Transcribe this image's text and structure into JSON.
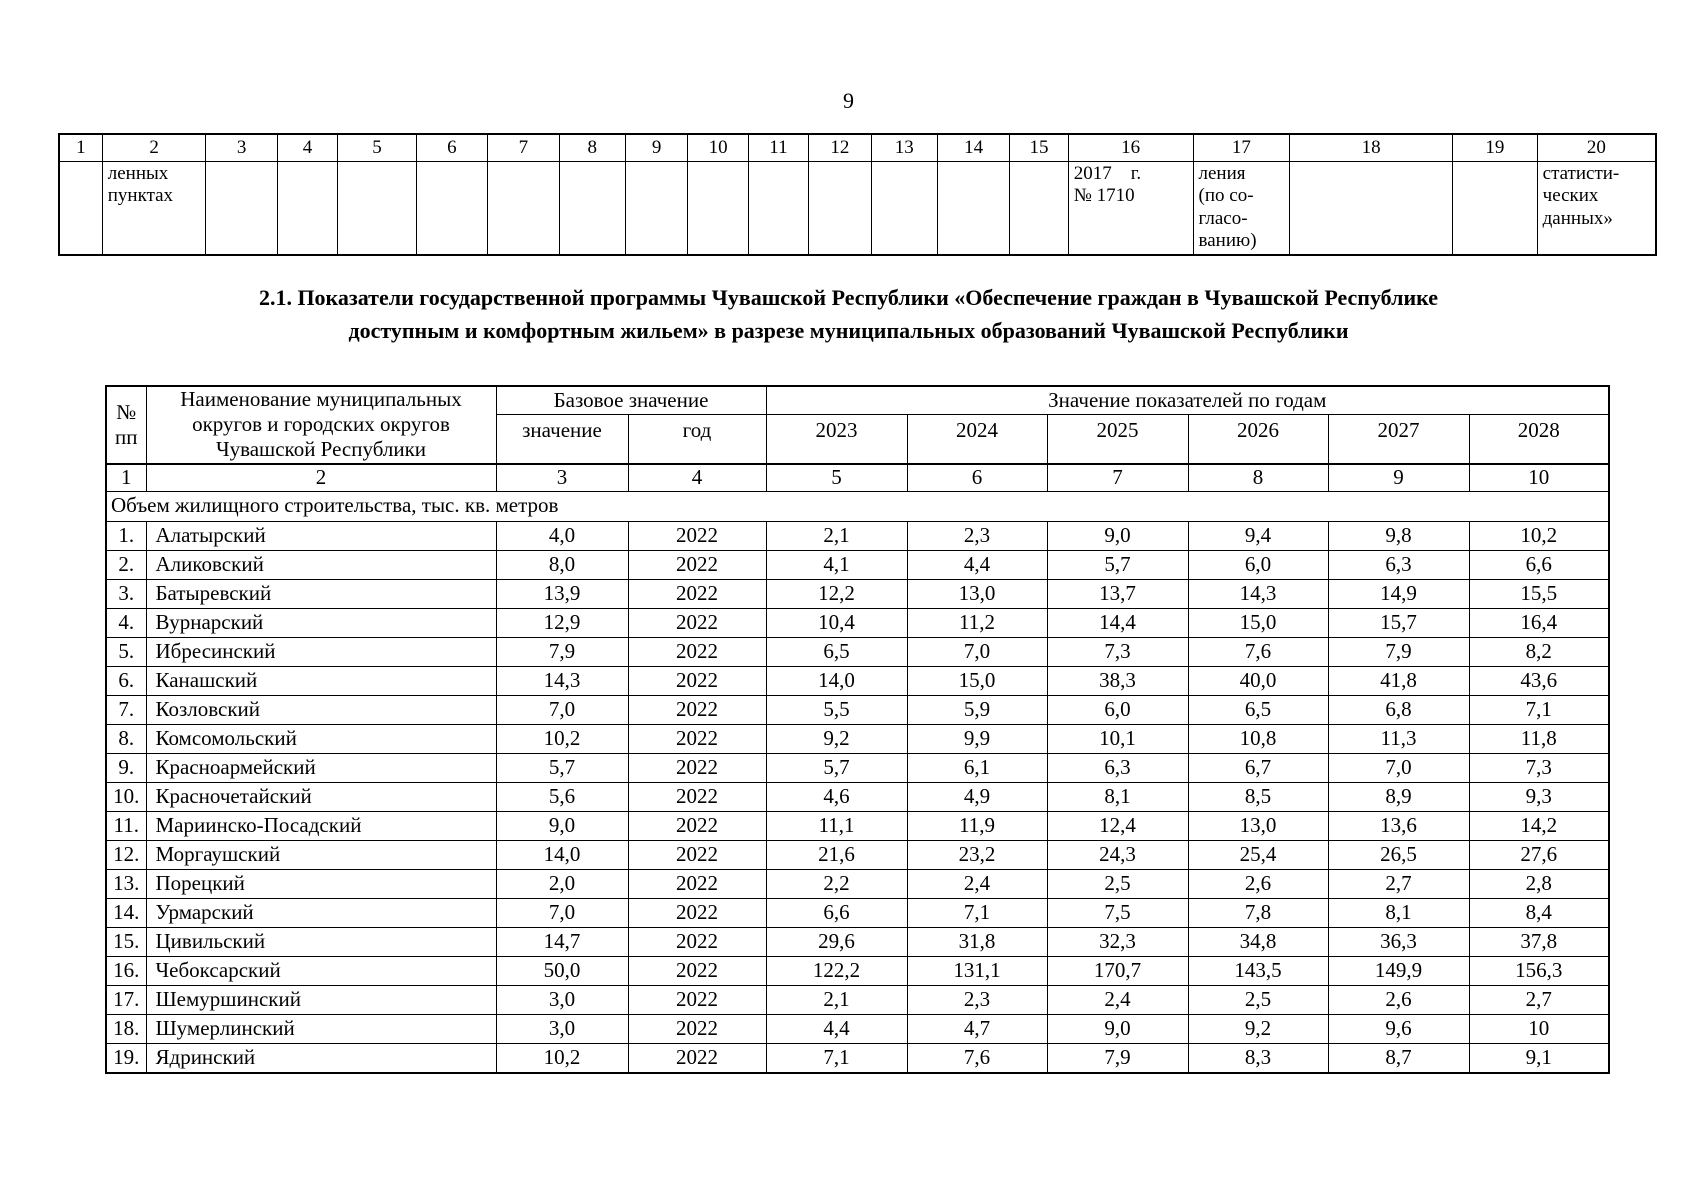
{
  "page": {
    "number": "9"
  },
  "continuation_table": {
    "column_numbers": [
      "1",
      "2",
      "3",
      "4",
      "5",
      "6",
      "7",
      "8",
      "9",
      "10",
      "11",
      "12",
      "13",
      "14",
      "15",
      "16",
      "17",
      "18",
      "19",
      "20"
    ],
    "body_cells": [
      "",
      "ленных\nпунктах",
      "",
      "",
      "",
      "",
      "",
      "",
      "",
      "",
      "",
      "",
      "",
      "",
      "",
      "2017    г.\n№ 1710",
      "ления\n(по со-\nгласо-\nванию)",
      "",
      "",
      "статисти-\nческих\nданных»"
    ]
  },
  "section_title": "2.1. Показатели государственной программы Чувашской Республики «Обеспечение граждан в Чувашской Республике\nдоступным и комфортным жильем» в разрезе муниципальных образований Чувашской Республики",
  "main_table": {
    "header": {
      "num": "№\nпп",
      "name": "Наименование муниципальных\nокругов и городских округов\nЧувашской Республики",
      "base_group": "Базовое значение",
      "base_value": "значение",
      "base_year": "год",
      "years_group": "Значение показателей по годам",
      "years": [
        "2023",
        "2024",
        "2025",
        "2026",
        "2027",
        "2028"
      ]
    },
    "column_numbers": [
      "1",
      "2",
      "3",
      "4",
      "5",
      "6",
      "7",
      "8",
      "9",
      "10"
    ],
    "section_row": "Объем жилищного строительства, тыс. кв. метров",
    "rows": [
      [
        "1.",
        "Алатырский",
        "4,0",
        "2022",
        "2,1",
        "2,3",
        "9,0",
        "9,4",
        "9,8",
        "10,2"
      ],
      [
        "2.",
        "Аликовский",
        "8,0",
        "2022",
        "4,1",
        "4,4",
        "5,7",
        "6,0",
        "6,3",
        "6,6"
      ],
      [
        "3.",
        "Батыревский",
        "13,9",
        "2022",
        "12,2",
        "13,0",
        "13,7",
        "14,3",
        "14,9",
        "15,5"
      ],
      [
        "4.",
        "Вурнарский",
        "12,9",
        "2022",
        "10,4",
        "11,2",
        "14,4",
        "15,0",
        "15,7",
        "16,4"
      ],
      [
        "5.",
        "Ибресинский",
        "7,9",
        "2022",
        "6,5",
        "7,0",
        "7,3",
        "7,6",
        "7,9",
        "8,2"
      ],
      [
        "6.",
        "Канашский",
        "14,3",
        "2022",
        "14,0",
        "15,0",
        "38,3",
        "40,0",
        "41,8",
        "43,6"
      ],
      [
        "7.",
        "Козловский",
        "7,0",
        "2022",
        "5,5",
        "5,9",
        "6,0",
        "6,5",
        "6,8",
        "7,1"
      ],
      [
        "8.",
        "Комсомольский",
        "10,2",
        "2022",
        "9,2",
        "9,9",
        "10,1",
        "10,8",
        "11,3",
        "11,8"
      ],
      [
        "9.",
        "Красноармейский",
        "5,7",
        "2022",
        "5,7",
        "6,1",
        "6,3",
        "6,7",
        "7,0",
        "7,3"
      ],
      [
        "10.",
        "Красночетайский",
        "5,6",
        "2022",
        "4,6",
        "4,9",
        "8,1",
        "8,5",
        "8,9",
        "9,3"
      ],
      [
        "11.",
        "Мариинско-Посадский",
        "9,0",
        "2022",
        "11,1",
        "11,9",
        "12,4",
        "13,0",
        "13,6",
        "14,2"
      ],
      [
        "12.",
        "Моргаушский",
        "14,0",
        "2022",
        "21,6",
        "23,2",
        "24,3",
        "25,4",
        "26,5",
        "27,6"
      ],
      [
        "13.",
        "Порецкий",
        "2,0",
        "2022",
        "2,2",
        "2,4",
        "2,5",
        "2,6",
        "2,7",
        "2,8"
      ],
      [
        "14.",
        "Урмарский",
        "7,0",
        "2022",
        "6,6",
        "7,1",
        "7,5",
        "7,8",
        "8,1",
        "8,4"
      ],
      [
        "15.",
        "Цивильский",
        "14,7",
        "2022",
        "29,6",
        "31,8",
        "32,3",
        "34,8",
        "36,3",
        "37,8"
      ],
      [
        "16.",
        "Чебоксарский",
        "50,0",
        "2022",
        "122,2",
        "131,1",
        "170,7",
        "143,5",
        "149,9",
        "156,3"
      ],
      [
        "17.",
        "Шемуршинский",
        "3,0",
        "2022",
        "2,1",
        "2,3",
        "2,4",
        "2,5",
        "2,6",
        "2,7"
      ],
      [
        "18.",
        "Шумерлинский",
        "3,0",
        "2022",
        "4,4",
        "4,7",
        "9,0",
        "9,2",
        "9,6",
        "10"
      ],
      [
        "19.",
        "Ядринский",
        "10,2",
        "2022",
        "7,1",
        "7,6",
        "7,9",
        "8,3",
        "8,7",
        "9,1"
      ]
    ]
  }
}
